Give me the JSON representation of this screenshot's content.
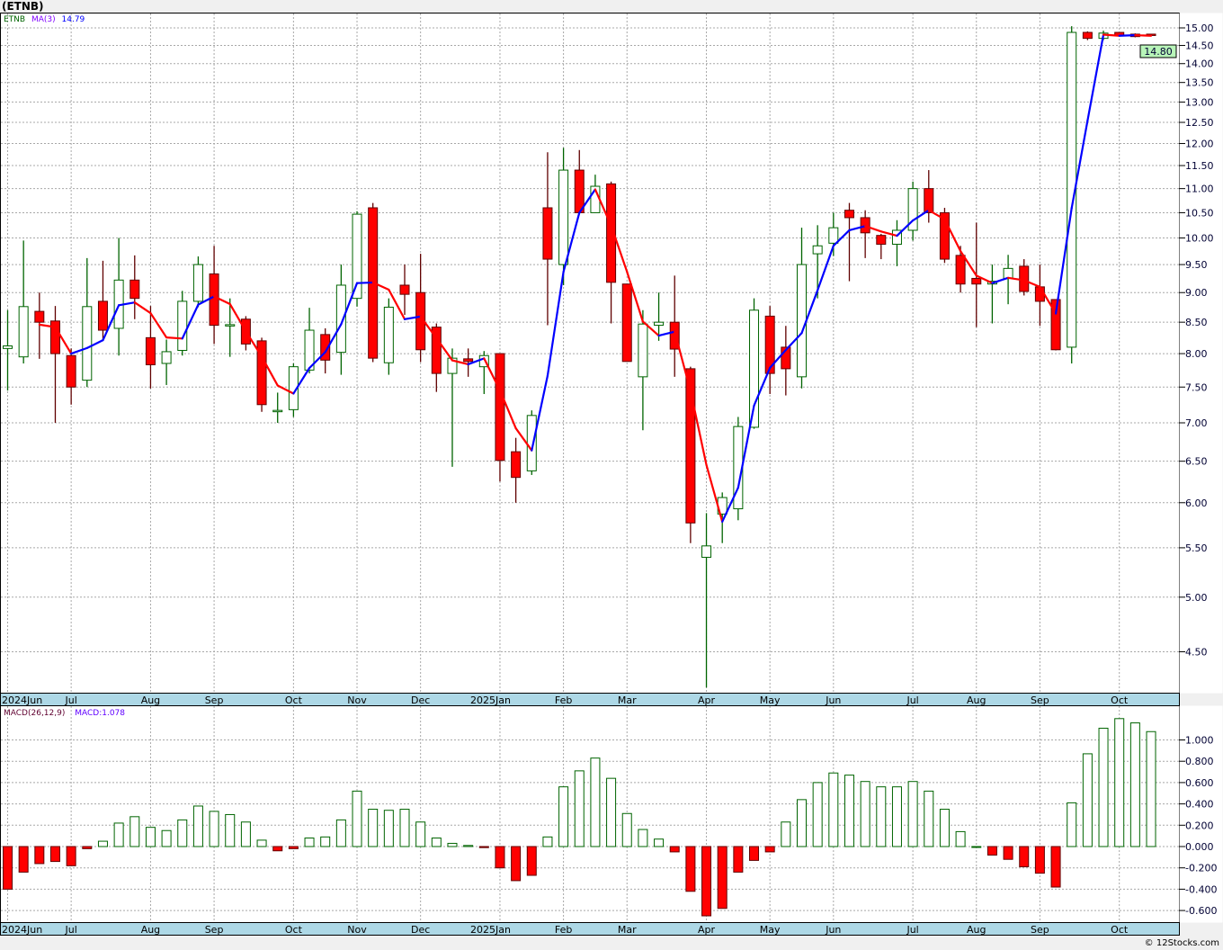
{
  "title": "(ETNB)",
  "price_legend": {
    "symbol": "ETNB",
    "ma_label": "MA(3)",
    "ma_value": "14.79"
  },
  "macd_legend": {
    "label": "MACD(26,12,9)",
    "value": "MACD:1.078"
  },
  "last_price_label": "14.80",
  "footer": "© 12Stocks.com",
  "colors": {
    "up_border": "#006400",
    "down_fill": "#ff0000",
    "down_border": "#600000",
    "ma_up": "#0000ff",
    "ma_down": "#ff0000",
    "band": "#add8e6",
    "last_price_bg": "#b8f5b8"
  },
  "chart_data": [
    {
      "type": "candlestick",
      "title": "ETNB weekly",
      "yscale": "log",
      "ylim": [
        4.17,
        15.3
      ],
      "grid": true,
      "y_ticks": [
        "15.00",
        "14.50",
        "14.00",
        "13.50",
        "13.00",
        "12.50",
        "12.00",
        "11.50",
        "11.00",
        "10.50",
        "10.00",
        "9.50",
        "9.00",
        "8.50",
        "8.00",
        "7.50",
        "7.00",
        "6.50",
        "6.00",
        "5.50",
        "5.00",
        "4.50"
      ],
      "x_ticks": [
        {
          "label": "2024Jun",
          "bar": 0
        },
        {
          "label": "Jul",
          "bar": 4
        },
        {
          "label": "Aug",
          "bar": 9
        },
        {
          "label": "Sep",
          "bar": 13
        },
        {
          "label": "Oct",
          "bar": 18
        },
        {
          "label": "Nov",
          "bar": 22
        },
        {
          "label": "Dec",
          "bar": 26
        },
        {
          "label": "2025Jan",
          "bar": 31
        },
        {
          "label": "Feb",
          "bar": 35
        },
        {
          "label": "Mar",
          "bar": 39
        },
        {
          "label": "Apr",
          "bar": 44
        },
        {
          "label": "May",
          "bar": 48
        },
        {
          "label": "Jun",
          "bar": 52
        },
        {
          "label": "Jul",
          "bar": 57
        },
        {
          "label": "Aug",
          "bar": 61
        },
        {
          "label": "Sep",
          "bar": 65
        },
        {
          "label": "Oct",
          "bar": 70
        }
      ],
      "ohlc": [
        [
          8.08,
          8.7,
          7.45,
          8.12
        ],
        [
          7.95,
          9.95,
          7.85,
          8.76
        ],
        [
          8.68,
          9.0,
          7.92,
          8.5
        ],
        [
          8.52,
          8.77,
          7.0,
          8.0
        ],
        [
          7.97,
          8.08,
          7.25,
          7.5
        ],
        [
          7.6,
          9.62,
          7.5,
          8.76
        ],
        [
          8.85,
          9.57,
          8.2,
          8.37
        ],
        [
          8.4,
          10.0,
          7.97,
          9.22
        ],
        [
          9.22,
          9.67,
          8.55,
          8.9
        ],
        [
          8.25,
          8.77,
          7.48,
          7.83
        ],
        [
          7.85,
          8.22,
          7.53,
          8.03
        ],
        [
          8.05,
          9.03,
          7.97,
          8.85
        ],
        [
          8.85,
          9.65,
          8.75,
          9.5
        ],
        [
          9.33,
          9.85,
          8.15,
          8.45
        ],
        [
          8.45,
          8.9,
          7.95,
          8.46
        ],
        [
          8.55,
          8.6,
          8.05,
          8.15
        ],
        [
          8.2,
          8.25,
          7.15,
          7.25
        ],
        [
          7.16,
          7.42,
          7.0,
          7.17
        ],
        [
          7.18,
          7.85,
          7.08,
          7.8
        ],
        [
          7.75,
          8.74,
          7.7,
          8.37
        ],
        [
          8.3,
          8.4,
          7.7,
          7.9
        ],
        [
          8.02,
          9.5,
          7.68,
          9.13
        ],
        [
          8.9,
          10.53,
          8.76,
          10.47
        ],
        [
          10.6,
          10.7,
          7.87,
          7.93
        ],
        [
          7.86,
          8.9,
          7.68,
          8.75
        ],
        [
          9.13,
          9.5,
          8.62,
          8.97
        ],
        [
          9.0,
          9.7,
          7.87,
          8.06
        ],
        [
          8.42,
          8.48,
          7.43,
          7.7
        ],
        [
          7.7,
          8.08,
          6.43,
          7.93
        ],
        [
          7.92,
          8.08,
          7.65,
          7.88
        ],
        [
          7.8,
          8.04,
          7.4,
          7.97
        ],
        [
          8.0,
          8.0,
          6.25,
          6.51
        ],
        [
          6.62,
          6.8,
          6.0,
          6.3
        ],
        [
          6.38,
          7.17,
          6.33,
          7.1
        ],
        [
          10.6,
          11.8,
          8.45,
          9.6
        ],
        [
          9.5,
          11.9,
          9.13,
          11.4
        ],
        [
          11.4,
          11.85,
          10.5,
          10.5
        ],
        [
          10.5,
          11.3,
          10.5,
          11.05
        ],
        [
          11.1,
          11.15,
          8.48,
          9.18
        ],
        [
          9.15,
          9.15,
          7.88,
          7.88
        ],
        [
          7.65,
          8.7,
          6.9,
          8.47
        ],
        [
          8.45,
          9.0,
          8.2,
          8.5
        ],
        [
          8.5,
          9.3,
          7.65,
          8.07
        ],
        [
          7.77,
          7.8,
          5.55,
          5.77
        ],
        [
          5.4,
          5.88,
          4.2,
          5.52
        ],
        [
          5.87,
          6.12,
          5.55,
          6.06
        ],
        [
          5.93,
          7.08,
          5.8,
          6.95
        ],
        [
          6.94,
          8.9,
          6.92,
          8.7
        ],
        [
          8.6,
          8.77,
          7.4,
          7.7
        ],
        [
          8.1,
          8.44,
          7.38,
          7.77
        ],
        [
          7.65,
          10.2,
          7.48,
          9.5
        ],
        [
          9.7,
          10.25,
          8.9,
          9.85
        ],
        [
          9.9,
          10.5,
          9.66,
          10.2
        ],
        [
          10.55,
          10.7,
          9.2,
          10.4
        ],
        [
          10.4,
          10.55,
          9.62,
          10.1
        ],
        [
          10.05,
          10.08,
          9.6,
          9.88
        ],
        [
          9.88,
          10.35,
          9.47,
          10.15
        ],
        [
          10.15,
          11.15,
          9.95,
          11.0
        ],
        [
          11.0,
          11.4,
          10.3,
          10.5
        ],
        [
          10.5,
          10.6,
          9.53,
          9.6
        ],
        [
          9.67,
          9.85,
          9.0,
          9.15
        ],
        [
          9.25,
          10.3,
          8.42,
          9.15
        ],
        [
          9.15,
          9.5,
          8.48,
          9.2
        ],
        [
          9.25,
          9.68,
          8.8,
          9.43
        ],
        [
          9.47,
          9.6,
          8.95,
          9.02
        ],
        [
          9.1,
          9.5,
          8.44,
          8.85
        ],
        [
          8.88,
          8.88,
          8.05,
          8.06
        ],
        [
          8.1,
          15.05,
          7.85,
          14.87
        ],
        [
          14.87,
          14.9,
          14.65,
          14.7
        ],
        [
          14.7,
          14.92,
          14.65,
          14.85
        ],
        [
          14.87,
          14.88,
          14.75,
          14.77
        ],
        [
          14.82,
          14.84,
          14.73,
          14.75
        ],
        [
          14.82,
          14.83,
          14.78,
          14.8
        ]
      ],
      "ma_period": 3
    },
    {
      "type": "bar",
      "title": "MACD(26,12,9)",
      "ylim": [
        -0.72,
        1.3
      ],
      "grid": true,
      "y_ticks": [
        "1.000",
        "0.800",
        "0.600",
        "0.400",
        "0.200",
        "0.000",
        "-0.200",
        "-0.400",
        "-0.600"
      ],
      "y_tick_values": [
        1.0,
        0.8,
        0.6,
        0.4,
        0.2,
        0.0,
        -0.2,
        -0.4,
        -0.6
      ],
      "values": [
        -0.4,
        -0.24,
        -0.16,
        -0.14,
        -0.18,
        -0.02,
        0.05,
        0.22,
        0.28,
        0.18,
        0.15,
        0.25,
        0.38,
        0.33,
        0.3,
        0.23,
        0.06,
        -0.04,
        -0.02,
        0.08,
        0.09,
        0.25,
        0.52,
        0.35,
        0.34,
        0.35,
        0.23,
        0.08,
        0.03,
        0.01,
        -0.01,
        -0.2,
        -0.32,
        -0.27,
        0.09,
        0.56,
        0.71,
        0.83,
        0.64,
        0.31,
        0.16,
        0.07,
        -0.05,
        -0.42,
        -0.65,
        -0.58,
        -0.24,
        -0.13,
        -0.05,
        0.23,
        0.44,
        0.6,
        0.69,
        0.67,
        0.61,
        0.56,
        0.56,
        0.61,
        0.52,
        0.35,
        0.14,
        0.0,
        -0.08,
        -0.12,
        -0.19,
        -0.25,
        -0.38,
        0.41,
        0.87,
        1.11,
        1.2,
        1.16,
        1.078
      ]
    }
  ]
}
